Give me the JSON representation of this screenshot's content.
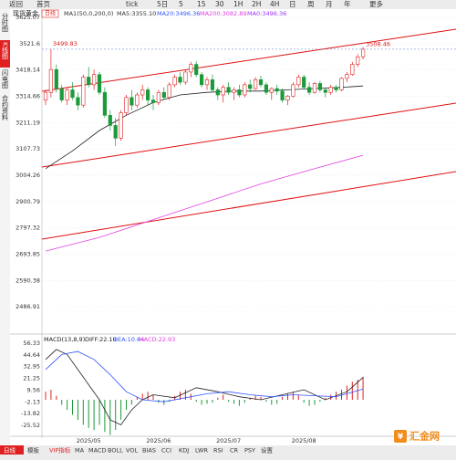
{
  "toolbar": [
    "返回",
    "首页",
    "tick",
    "5日",
    "5",
    "15",
    "30",
    "1H",
    "2H",
    "4H",
    "日",
    "周",
    "月",
    "年",
    "更多"
  ],
  "sidebar": [
    "分时图",
    "K线图",
    "闪电图",
    "合约资料"
  ],
  "tabs": [
    "日线",
    "模板",
    "VIP指标",
    "MA",
    "MACD",
    "BOLL",
    "VOL",
    "BIAS",
    "CCI",
    "KDJ",
    "LWR",
    "RSI",
    "CR",
    "PSY",
    "设置"
  ],
  "logo": "汇金网",
  "chart_data": [
    {
      "type": "candlestick",
      "title": "现货黄金",
      "badge": "日线",
      "legend": [
        {
          "text": "MA1(50,0,200,0)",
          "color": "#333333"
        },
        {
          "text": "MA5:3355.10",
          "color": "#333333"
        },
        {
          "text": "MA20:3496.36",
          "color": "#3355ff"
        },
        {
          "text": "MA200:3082.89",
          "color": "#e040e0"
        },
        {
          "text": "MA0:3496.36",
          "color": "#9b30ff"
        }
      ],
      "categories": [
        null,
        null,
        null,
        null,
        null,
        null,
        null,
        null,
        "2025/05",
        null,
        null,
        null,
        null,
        null,
        null,
        null,
        null,
        null,
        null,
        null,
        null,
        "2025/06",
        null,
        null,
        null,
        null,
        null,
        null,
        null,
        null,
        null,
        null,
        null,
        null,
        "2025/07",
        null,
        null,
        null,
        null,
        null,
        null,
        null,
        null,
        null,
        null,
        null,
        null,
        null,
        "2025/08",
        null,
        null,
        null,
        null,
        null,
        null,
        null,
        null,
        null,
        null,
        null
      ],
      "candles": [
        [
          3300,
          3340,
          3280,
          3330
        ],
        [
          3330,
          3499.83,
          3310,
          3420
        ],
        [
          3420,
          3440,
          3330,
          3345
        ],
        [
          3345,
          3360,
          3290,
          3300
        ],
        [
          3300,
          3350,
          3280,
          3340
        ],
        [
          3340,
          3370,
          3300,
          3310
        ],
        [
          3310,
          3330,
          3260,
          3280
        ],
        [
          3280,
          3400,
          3270,
          3390
        ],
        [
          3390,
          3430,
          3350,
          3360
        ],
        [
          3360,
          3420,
          3340,
          3400
        ],
        [
          3400,
          3410,
          3320,
          3330
        ],
        [
          3330,
          3350,
          3230,
          3240
        ],
        [
          3240,
          3260,
          3180,
          3200
        ],
        [
          3200,
          3230,
          3119,
          3150
        ],
        [
          3150,
          3260,
          3140,
          3250
        ],
        [
          3250,
          3320,
          3240,
          3310
        ],
        [
          3310,
          3340,
          3260,
          3280
        ],
        [
          3280,
          3330,
          3270,
          3320
        ],
        [
          3320,
          3360,
          3300,
          3340
        ],
        [
          3340,
          3350,
          3280,
          3300
        ],
        [
          3300,
          3320,
          3260,
          3290
        ],
        [
          3290,
          3340,
          3280,
          3330
        ],
        [
          3330,
          3350,
          3300,
          3310
        ],
        [
          3310,
          3370,
          3300,
          3360
        ],
        [
          3360,
          3400,
          3350,
          3390
        ],
        [
          3390,
          3410,
          3360,
          3370
        ],
        [
          3370,
          3420,
          3360,
          3410
        ],
        [
          3410,
          3450,
          3390,
          3440
        ],
        [
          3440,
          3452,
          3390,
          3400
        ],
        [
          3400,
          3410,
          3350,
          3360
        ],
        [
          3360,
          3390,
          3340,
          3380
        ],
        [
          3380,
          3400,
          3330,
          3340
        ],
        [
          3340,
          3350,
          3300,
          3320
        ],
        [
          3320,
          3360,
          3290,
          3350
        ],
        [
          3350,
          3370,
          3320,
          3330
        ],
        [
          3330,
          3350,
          3300,
          3340
        ],
        [
          3340,
          3360,
          3310,
          3320
        ],
        [
          3320,
          3370,
          3310,
          3360
        ],
        [
          3360,
          3380,
          3330,
          3345
        ],
        [
          3345,
          3390,
          3340,
          3380
        ],
        [
          3380,
          3395,
          3350,
          3360
        ],
        [
          3360,
          3370,
          3320,
          3330
        ],
        [
          3330,
          3350,
          3300,
          3345
        ],
        [
          3345,
          3360,
          3320,
          3335
        ],
        [
          3335,
          3345,
          3290,
          3300
        ],
        [
          3300,
          3320,
          3280,
          3315
        ],
        [
          3315,
          3370,
          3310,
          3360
        ],
        [
          3360,
          3400,
          3350,
          3390
        ],
        [
          3390,
          3400,
          3340,
          3350
        ],
        [
          3350,
          3370,
          3320,
          3330
        ],
        [
          3330,
          3370,
          3325,
          3365
        ],
        [
          3365,
          3375,
          3330,
          3340
        ],
        [
          3340,
          3350,
          3310,
          3330
        ],
        [
          3330,
          3360,
          3320,
          3350
        ],
        [
          3350,
          3360,
          3330,
          3340
        ],
        [
          3340,
          3390,
          3335,
          3385
        ],
        [
          3385,
          3410,
          3370,
          3400
        ],
        [
          3400,
          3450,
          3395,
          3440
        ],
        [
          3440,
          3480,
          3430,
          3470
        ],
        [
          3470,
          3508.46,
          3460,
          3500
        ]
      ],
      "up_color": "#e02020",
      "down_color": "#1a9a3a",
      "lines": [
        {
          "color": "#222222",
          "x": [
            0,
            5,
            10,
            15,
            20,
            25,
            30,
            35,
            40,
            45,
            50,
            55,
            59
          ],
          "values": [
            3030,
            3100,
            3180,
            3240,
            3290,
            3320,
            3330,
            3335,
            3335,
            3340,
            3345,
            3350,
            3355.1
          ]
        },
        {
          "color": "#e040e0",
          "x": [
            0,
            10,
            20,
            30,
            40,
            50,
            59
          ],
          "values": [
            2706,
            2760,
            2830,
            2900,
            2970,
            3030,
            3082.89
          ]
        }
      ],
      "trendlines": [
        [
          3334.4,
          3578.4
        ],
        [
          3036.6,
          3287.8
        ],
        [
          2753.2,
          3018.7
        ]
      ],
      "trend_color": "#e01010",
      "ylim": [
        2383.44,
        3625.07
      ],
      "yticks": [
        3625.07,
        3521.6,
        3418.14,
        3314.66,
        3211.19,
        3107.73,
        3004.26,
        2900.79,
        2797.32,
        2693.85,
        2590.38,
        2486.91
      ],
      "grid": true
    },
    {
      "type": "macd",
      "title": "MACD(13,8,9)",
      "legend": [
        {
          "text": "DIFF:22.10",
          "color": "#222222"
        },
        {
          "text": "DEA:10.64",
          "color": "#3355ff"
        },
        {
          "text": "MACD:22.93",
          "color": "#e040e0"
        }
      ],
      "histogram": [
        8,
        10,
        4,
        -5,
        -10,
        -15,
        -20,
        -25,
        -28,
        -30,
        -25,
        -32,
        -35,
        -30,
        -20,
        -10,
        -5,
        3,
        6,
        8,
        5,
        -3,
        -5,
        -2,
        4,
        8,
        10,
        6,
        -2,
        -5,
        -4,
        -3,
        2,
        5,
        -2,
        -4,
        -6,
        -3,
        2,
        4,
        3,
        -2,
        -5,
        -4,
        3,
        6,
        8,
        5,
        -3,
        -6,
        -5,
        -2,
        2,
        5,
        8,
        10,
        14,
        18,
        20,
        22.93
      ],
      "up_color": "#e02020",
      "down_color": "#1a9a3a",
      "lines": [
        {
          "color": "#222222",
          "x": [
            0,
            2,
            4,
            6,
            8,
            10,
            12,
            14,
            16,
            18,
            20,
            24,
            28,
            32,
            36,
            40,
            44,
            48,
            52,
            56,
            59
          ],
          "values": [
            40,
            50,
            45,
            30,
            15,
            0,
            -20,
            -25,
            -10,
            0,
            5,
            2,
            12,
            8,
            3,
            0,
            5,
            10,
            0,
            8,
            22.1
          ]
        },
        {
          "color": "#3355ff",
          "x": [
            0,
            3,
            6,
            9,
            12,
            15,
            18,
            22,
            26,
            30,
            34,
            38,
            42,
            46,
            50,
            54,
            59
          ],
          "values": [
            30,
            45,
            48,
            40,
            25,
            8,
            0,
            -2,
            2,
            6,
            8,
            5,
            3,
            5,
            4,
            3,
            10.64
          ]
        }
      ],
      "ylim": [
        -36.3,
        61.7
      ],
      "yticks": [
        56.33,
        44.64,
        32.95,
        21.25,
        9.56,
        -2.13,
        -13.82,
        -25.52
      ]
    }
  ]
}
